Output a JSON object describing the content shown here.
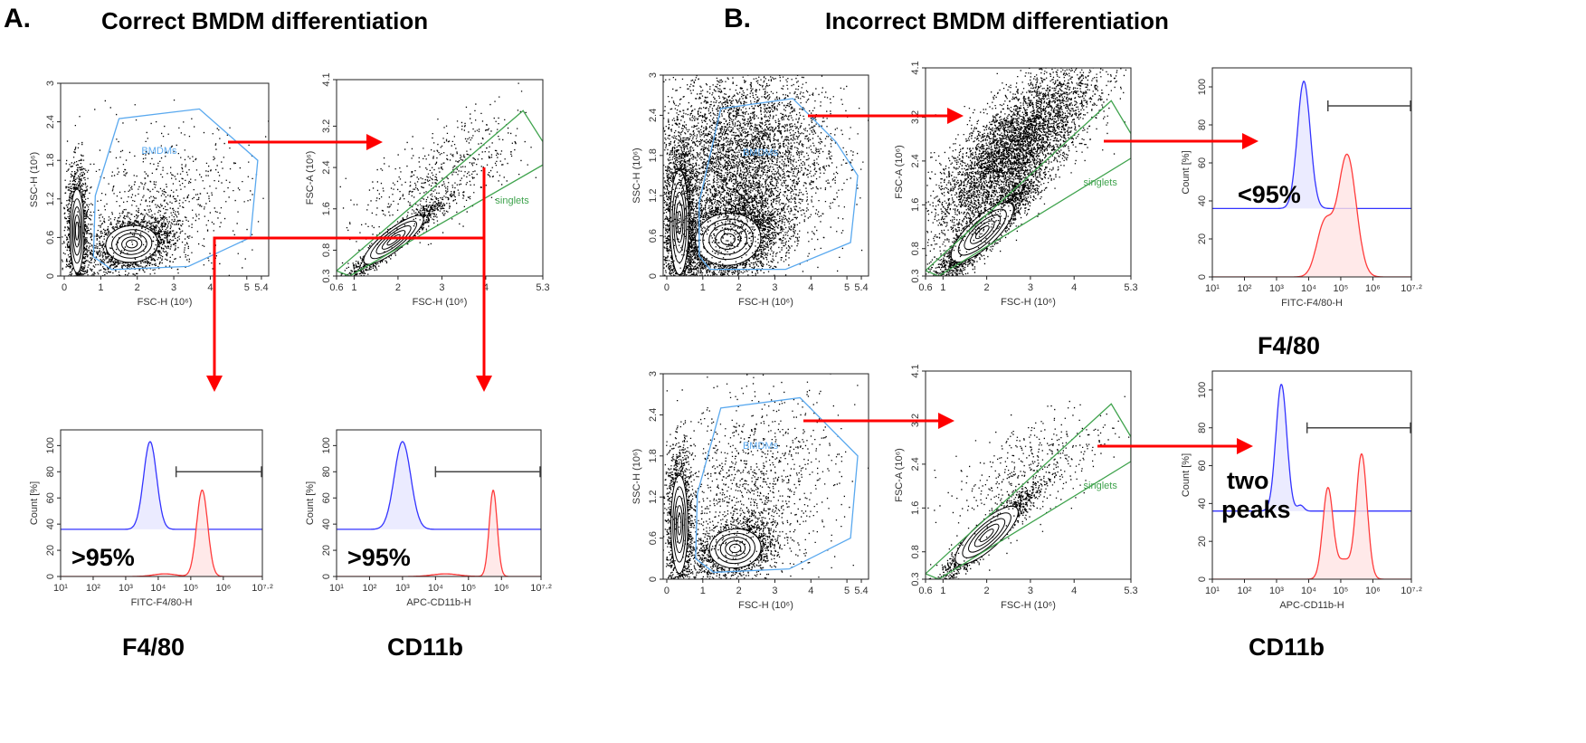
{
  "panels": {
    "A": {
      "letter": "A.",
      "title": "Correct BMDM differentiation"
    },
    "B": {
      "letter": "B.",
      "title": "Incorrect BMDM differentiation"
    }
  },
  "markers": {
    "a_f480": "F4/80",
    "a_cd11b": "CD11b",
    "b_f480": "F4/80",
    "b_cd11b": "CD11b"
  },
  "colors": {
    "arrow": "#ff0000",
    "bmdm_gate": "#5aa9ef",
    "singlets_gate": "#3fa34d",
    "control_hist": "#3333ff",
    "stained_hist": "#ff3b3b"
  },
  "chart_data": [
    {
      "panel": "A",
      "type": "scatter",
      "xlabel": "FSC-H (10⁶)",
      "ylabel": "SSC-H (10⁶)",
      "xlim": [
        -0.1,
        5.6
      ],
      "ylim": [
        0,
        3
      ],
      "xticks": [
        0,
        1,
        2,
        3,
        4,
        5,
        5.4
      ],
      "yticks": [
        0,
        0.6,
        1.2,
        1.8,
        2.4,
        3
      ],
      "gate": {
        "label": "BMDMs",
        "color": "#5aa9ef",
        "label_at": [
          2.6,
          1.9
        ],
        "polygon": [
          [
            0.8,
            0.3
          ],
          [
            0.85,
            1.25
          ],
          [
            1.5,
            2.45
          ],
          [
            3.7,
            2.6
          ],
          [
            5.3,
            1.8
          ],
          [
            5.1,
            0.6
          ],
          [
            3.4,
            0.15
          ],
          [
            1.3,
            0.1
          ]
        ]
      },
      "populations": [
        {
          "cx": 1.85,
          "cy": 0.5,
          "sx": 0.55,
          "sy": 0.22,
          "rho": 0.3,
          "n": 2200,
          "contours": true
        },
        {
          "cx": 0.35,
          "cy": 0.7,
          "sx": 0.15,
          "sy": 0.5,
          "rho": 0,
          "n": 1600,
          "contours": true
        },
        {
          "cx": 2.6,
          "cy": 1.1,
          "sx": 1.2,
          "sy": 0.6,
          "rho": 0.2,
          "n": 700,
          "contours": false
        }
      ]
    },
    {
      "panel": "A",
      "type": "scatter",
      "xlabel": "FSC-H (10⁶)",
      "ylabel": "FSC-A (10⁶)",
      "xlim": [
        0.6,
        5.3
      ],
      "ylim": [
        0.3,
        4.1
      ],
      "xticks": [
        0.6,
        1,
        2,
        3,
        4,
        5.3
      ],
      "yticks": [
        0.3,
        0.8,
        1.6,
        2.4,
        3.2,
        4.1
      ],
      "gate": {
        "label": "singlets",
        "color": "#3fa34d",
        "label_at": [
          4.6,
          1.7
        ],
        "polygon": [
          [
            0.6,
            0.4
          ],
          [
            4.85,
            3.5
          ],
          [
            5.3,
            2.9
          ],
          [
            5.3,
            2.45
          ],
          [
            0.9,
            0.3
          ]
        ]
      },
      "populations": [
        {
          "cx": 1.9,
          "cy": 1.0,
          "sx": 0.5,
          "sy": 0.35,
          "rho": 0.95,
          "n": 1800,
          "contours": true
        },
        {
          "cx": 3.0,
          "cy": 2.2,
          "sx": 0.9,
          "sy": 0.6,
          "rho": 0.6,
          "n": 600,
          "contours": false
        }
      ]
    },
    {
      "panel": "A",
      "type": "histogram",
      "xlabel": "FITC-F4/80-H",
      "ylabel": "Count [%]",
      "xlim": [
        1,
        7.2
      ],
      "ylim": [
        0,
        112
      ],
      "x_scale": "log",
      "xticks": [
        1,
        2,
        3,
        4,
        5,
        6,
        7.2
      ],
      "xticklabels": [
        "10¹",
        "10²",
        "10³",
        "10⁴",
        "10⁵",
        "10⁶",
        "10⁷·²"
      ],
      "yticks": [
        0,
        20,
        40,
        60,
        80,
        100
      ],
      "series": [
        {
          "color": "#3333ff",
          "fill": "#e6e6ff",
          "baseline": 36,
          "peaks": [
            {
              "log10_x": 3.75,
              "height": 67,
              "width": 0.2
            }
          ]
        },
        {
          "color": "#ff3b3b",
          "fill": "#ffe3e3",
          "baseline": 0,
          "peaks": [
            {
              "log10_x": 5.35,
              "height": 66,
              "width": 0.17
            },
            {
              "log10_x": 4.2,
              "height": 2,
              "width": 0.35
            }
          ]
        }
      ],
      "marker_gate": {
        "from": 4.55,
        "to": 7.2,
        "y": 80
      },
      "annotation": ">95%"
    },
    {
      "panel": "A",
      "type": "histogram",
      "xlabel": "APC-CD11b-H",
      "ylabel": "Count [%]",
      "xlim": [
        1,
        7.2
      ],
      "ylim": [
        0,
        112
      ],
      "x_scale": "log",
      "xticks": [
        1,
        2,
        3,
        4,
        5,
        6,
        7.2
      ],
      "xticklabels": [
        "10¹",
        "10²",
        "10³",
        "10⁴",
        "10⁵",
        "10⁶",
        "10⁷·²"
      ],
      "yticks": [
        0,
        20,
        40,
        60,
        80,
        100
      ],
      "series": [
        {
          "color": "#3333ff",
          "fill": "#e6e6ff",
          "baseline": 36,
          "peaks": [
            {
              "log10_x": 3.0,
              "height": 67,
              "width": 0.25
            }
          ]
        },
        {
          "color": "#ff3b3b",
          "fill": "#ffe3e3",
          "baseline": 0,
          "peaks": [
            {
              "log10_x": 5.75,
              "height": 66,
              "width": 0.12
            },
            {
              "log10_x": 4.3,
              "height": 2,
              "width": 0.4
            }
          ]
        }
      ],
      "marker_gate": {
        "from": 4.0,
        "to": 7.2,
        "y": 80
      },
      "annotation": ">95%"
    },
    {
      "panel": "B",
      "type": "scatter",
      "xlabel": "FSC-H (10⁶)",
      "ylabel": "SSC-H (10⁶)",
      "xlim": [
        -0.1,
        5.6
      ],
      "ylim": [
        0,
        3
      ],
      "xticks": [
        0,
        1,
        2,
        3,
        4,
        5,
        5.4
      ],
      "yticks": [
        0,
        0.6,
        1.2,
        1.8,
        2.4,
        3
      ],
      "gate": {
        "label": "BMDMs",
        "color": "#5aa9ef",
        "label_at": [
          2.6,
          1.8
        ],
        "polygon": [
          [
            0.9,
            0.3
          ],
          [
            0.9,
            1.1
          ],
          [
            1.5,
            2.5
          ],
          [
            3.5,
            2.65
          ],
          [
            4.7,
            2.0
          ],
          [
            5.3,
            1.5
          ],
          [
            5.1,
            0.5
          ],
          [
            3.3,
            0.1
          ],
          [
            1.2,
            0.1
          ]
        ]
      },
      "populations": [
        {
          "cx": 1.7,
          "cy": 0.55,
          "sx": 0.7,
          "sy": 0.3,
          "rho": 0.3,
          "n": 4000,
          "contours": true
        },
        {
          "cx": 0.35,
          "cy": 0.8,
          "sx": 0.2,
          "sy": 0.6,
          "rho": 0,
          "n": 2500,
          "contours": true
        },
        {
          "cx": 2.0,
          "cy": 1.7,
          "sx": 1.2,
          "sy": 0.7,
          "rho": 0.1,
          "n": 5000,
          "contours": false
        }
      ]
    },
    {
      "panel": "B",
      "type": "scatter",
      "xlabel": "FSC-H (10⁶)",
      "ylabel": "FSC-A (10⁶)",
      "xlim": [
        0.6,
        5.3
      ],
      "ylim": [
        0.3,
        4.1
      ],
      "xticks": [
        0.6,
        1,
        2,
        3,
        4,
        5.3
      ],
      "yticks": [
        0.3,
        0.8,
        1.6,
        2.4,
        3.2,
        4.1
      ],
      "gate": {
        "label": "singlets",
        "color": "#3fa34d",
        "label_at": [
          4.6,
          1.95
        ],
        "polygon": [
          [
            0.6,
            0.4
          ],
          [
            4.85,
            3.5
          ],
          [
            5.3,
            2.9
          ],
          [
            5.3,
            2.45
          ],
          [
            0.9,
            0.3
          ]
        ]
      },
      "populations": [
        {
          "cx": 1.9,
          "cy": 1.1,
          "sx": 0.55,
          "sy": 0.45,
          "rho": 0.92,
          "n": 3000,
          "contours": true
        },
        {
          "cx": 2.6,
          "cy": 2.6,
          "sx": 0.9,
          "sy": 0.75,
          "rho": 0.75,
          "n": 5000,
          "contours": false
        }
      ]
    },
    {
      "panel": "B",
      "type": "histogram",
      "xlabel": "FITC-F4/80-H",
      "ylabel": "Count [%]",
      "xlim": [
        1,
        7.2
      ],
      "ylim": [
        0,
        110
      ],
      "x_scale": "log",
      "xticks": [
        1,
        2,
        3,
        4,
        5,
        6,
        7.2
      ],
      "xticklabels": [
        "10¹",
        "10²",
        "10³",
        "10⁴",
        "10⁵",
        "10⁶",
        "10⁷·²"
      ],
      "yticks": [
        0,
        20,
        40,
        60,
        80,
        100
      ],
      "series": [
        {
          "color": "#3333ff",
          "fill": "#e6e6ff",
          "baseline": 36,
          "peaks": [
            {
              "log10_x": 3.85,
              "height": 67,
              "width": 0.2
            }
          ]
        },
        {
          "color": "#ff3b3b",
          "fill": "#ffe3e3",
          "baseline": 0,
          "peaks": [
            {
              "log10_x": 5.2,
              "height": 64,
              "width": 0.28
            },
            {
              "log10_x": 4.5,
              "height": 28,
              "width": 0.25
            }
          ]
        }
      ],
      "marker_gate": {
        "from": 4.6,
        "to": 7.2,
        "y": 90
      },
      "annotation": "<95%"
    },
    {
      "panel": "B",
      "type": "scatter",
      "xlabel": "FSC-H (10⁶)",
      "ylabel": "SSC-H (10⁶)",
      "xlim": [
        -0.1,
        5.6
      ],
      "ylim": [
        0,
        3
      ],
      "xticks": [
        0,
        1,
        2,
        3,
        4,
        5,
        5.4
      ],
      "yticks": [
        0,
        0.6,
        1.2,
        1.8,
        2.4,
        3
      ],
      "gate": {
        "label": "BMDMs",
        "color": "#5aa9ef",
        "label_at": [
          2.6,
          1.9
        ],
        "polygon": [
          [
            0.8,
            0.3
          ],
          [
            0.85,
            1.25
          ],
          [
            1.5,
            2.5
          ],
          [
            3.7,
            2.65
          ],
          [
            5.3,
            1.8
          ],
          [
            5.1,
            0.6
          ],
          [
            3.4,
            0.15
          ],
          [
            1.3,
            0.1
          ]
        ]
      },
      "populations": [
        {
          "cx": 1.9,
          "cy": 0.45,
          "sx": 0.55,
          "sy": 0.22,
          "rho": 0.3,
          "n": 1800,
          "contours": true
        },
        {
          "cx": 0.35,
          "cy": 0.8,
          "sx": 0.18,
          "sy": 0.55,
          "rho": 0,
          "n": 1800,
          "contours": true
        },
        {
          "cx": 2.3,
          "cy": 1.3,
          "sx": 1.2,
          "sy": 0.7,
          "rho": 0.2,
          "n": 1200,
          "contours": false
        }
      ]
    },
    {
      "panel": "B",
      "type": "scatter",
      "xlabel": "FSC-H (10⁶)",
      "ylabel": "FSC-A (10⁶)",
      "xlim": [
        0.6,
        5.3
      ],
      "ylim": [
        0.3,
        4.1
      ],
      "xticks": [
        0.6,
        1,
        2,
        3,
        4,
        5.3
      ],
      "yticks": [
        0.3,
        0.8,
        1.6,
        2.4,
        3.2,
        4.1
      ],
      "gate": {
        "label": "singlets",
        "color": "#3fa34d",
        "label_at": [
          4.6,
          1.95
        ],
        "polygon": [
          [
            0.6,
            0.4
          ],
          [
            4.85,
            3.5
          ],
          [
            5.3,
            2.9
          ],
          [
            5.3,
            2.45
          ],
          [
            0.9,
            0.3
          ]
        ]
      },
      "populations": [
        {
          "cx": 2.0,
          "cy": 1.1,
          "sx": 0.55,
          "sy": 0.42,
          "rho": 0.95,
          "n": 1800,
          "contours": true
        },
        {
          "cx": 3.0,
          "cy": 2.3,
          "sx": 0.9,
          "sy": 0.6,
          "rho": 0.6,
          "n": 500,
          "contours": false
        }
      ]
    },
    {
      "panel": "B",
      "type": "histogram",
      "xlabel": "APC-CD11b-H",
      "ylabel": "Count [%]",
      "xlim": [
        1,
        7.2
      ],
      "ylim": [
        0,
        110
      ],
      "x_scale": "log",
      "xticks": [
        1,
        2,
        3,
        4,
        5,
        6,
        7.2
      ],
      "xticklabels": [
        "10¹",
        "10²",
        "10³",
        "10⁴",
        "10⁵",
        "10⁶",
        "10⁷·²"
      ],
      "yticks": [
        0,
        20,
        40,
        60,
        80,
        100
      ],
      "series": [
        {
          "color": "#3333ff",
          "fill": "#e6e6ff",
          "baseline": 36,
          "peaks": [
            {
              "log10_x": 3.15,
              "height": 67,
              "width": 0.17
            },
            {
              "log10_x": 3.75,
              "height": 3,
              "width": 0.1
            }
          ]
        },
        {
          "color": "#ff3b3b",
          "fill": "#ffe3e3",
          "baseline": 0,
          "peaks": [
            {
              "log10_x": 4.6,
              "height": 48,
              "width": 0.16
            },
            {
              "log10_x": 5.65,
              "height": 66,
              "width": 0.17
            },
            {
              "log10_x": 5.1,
              "height": 10,
              "width": 0.2
            }
          ]
        }
      ],
      "marker_gate": {
        "from": 3.95,
        "to": 7.2,
        "y": 80
      },
      "annotation": "two peaks"
    }
  ]
}
